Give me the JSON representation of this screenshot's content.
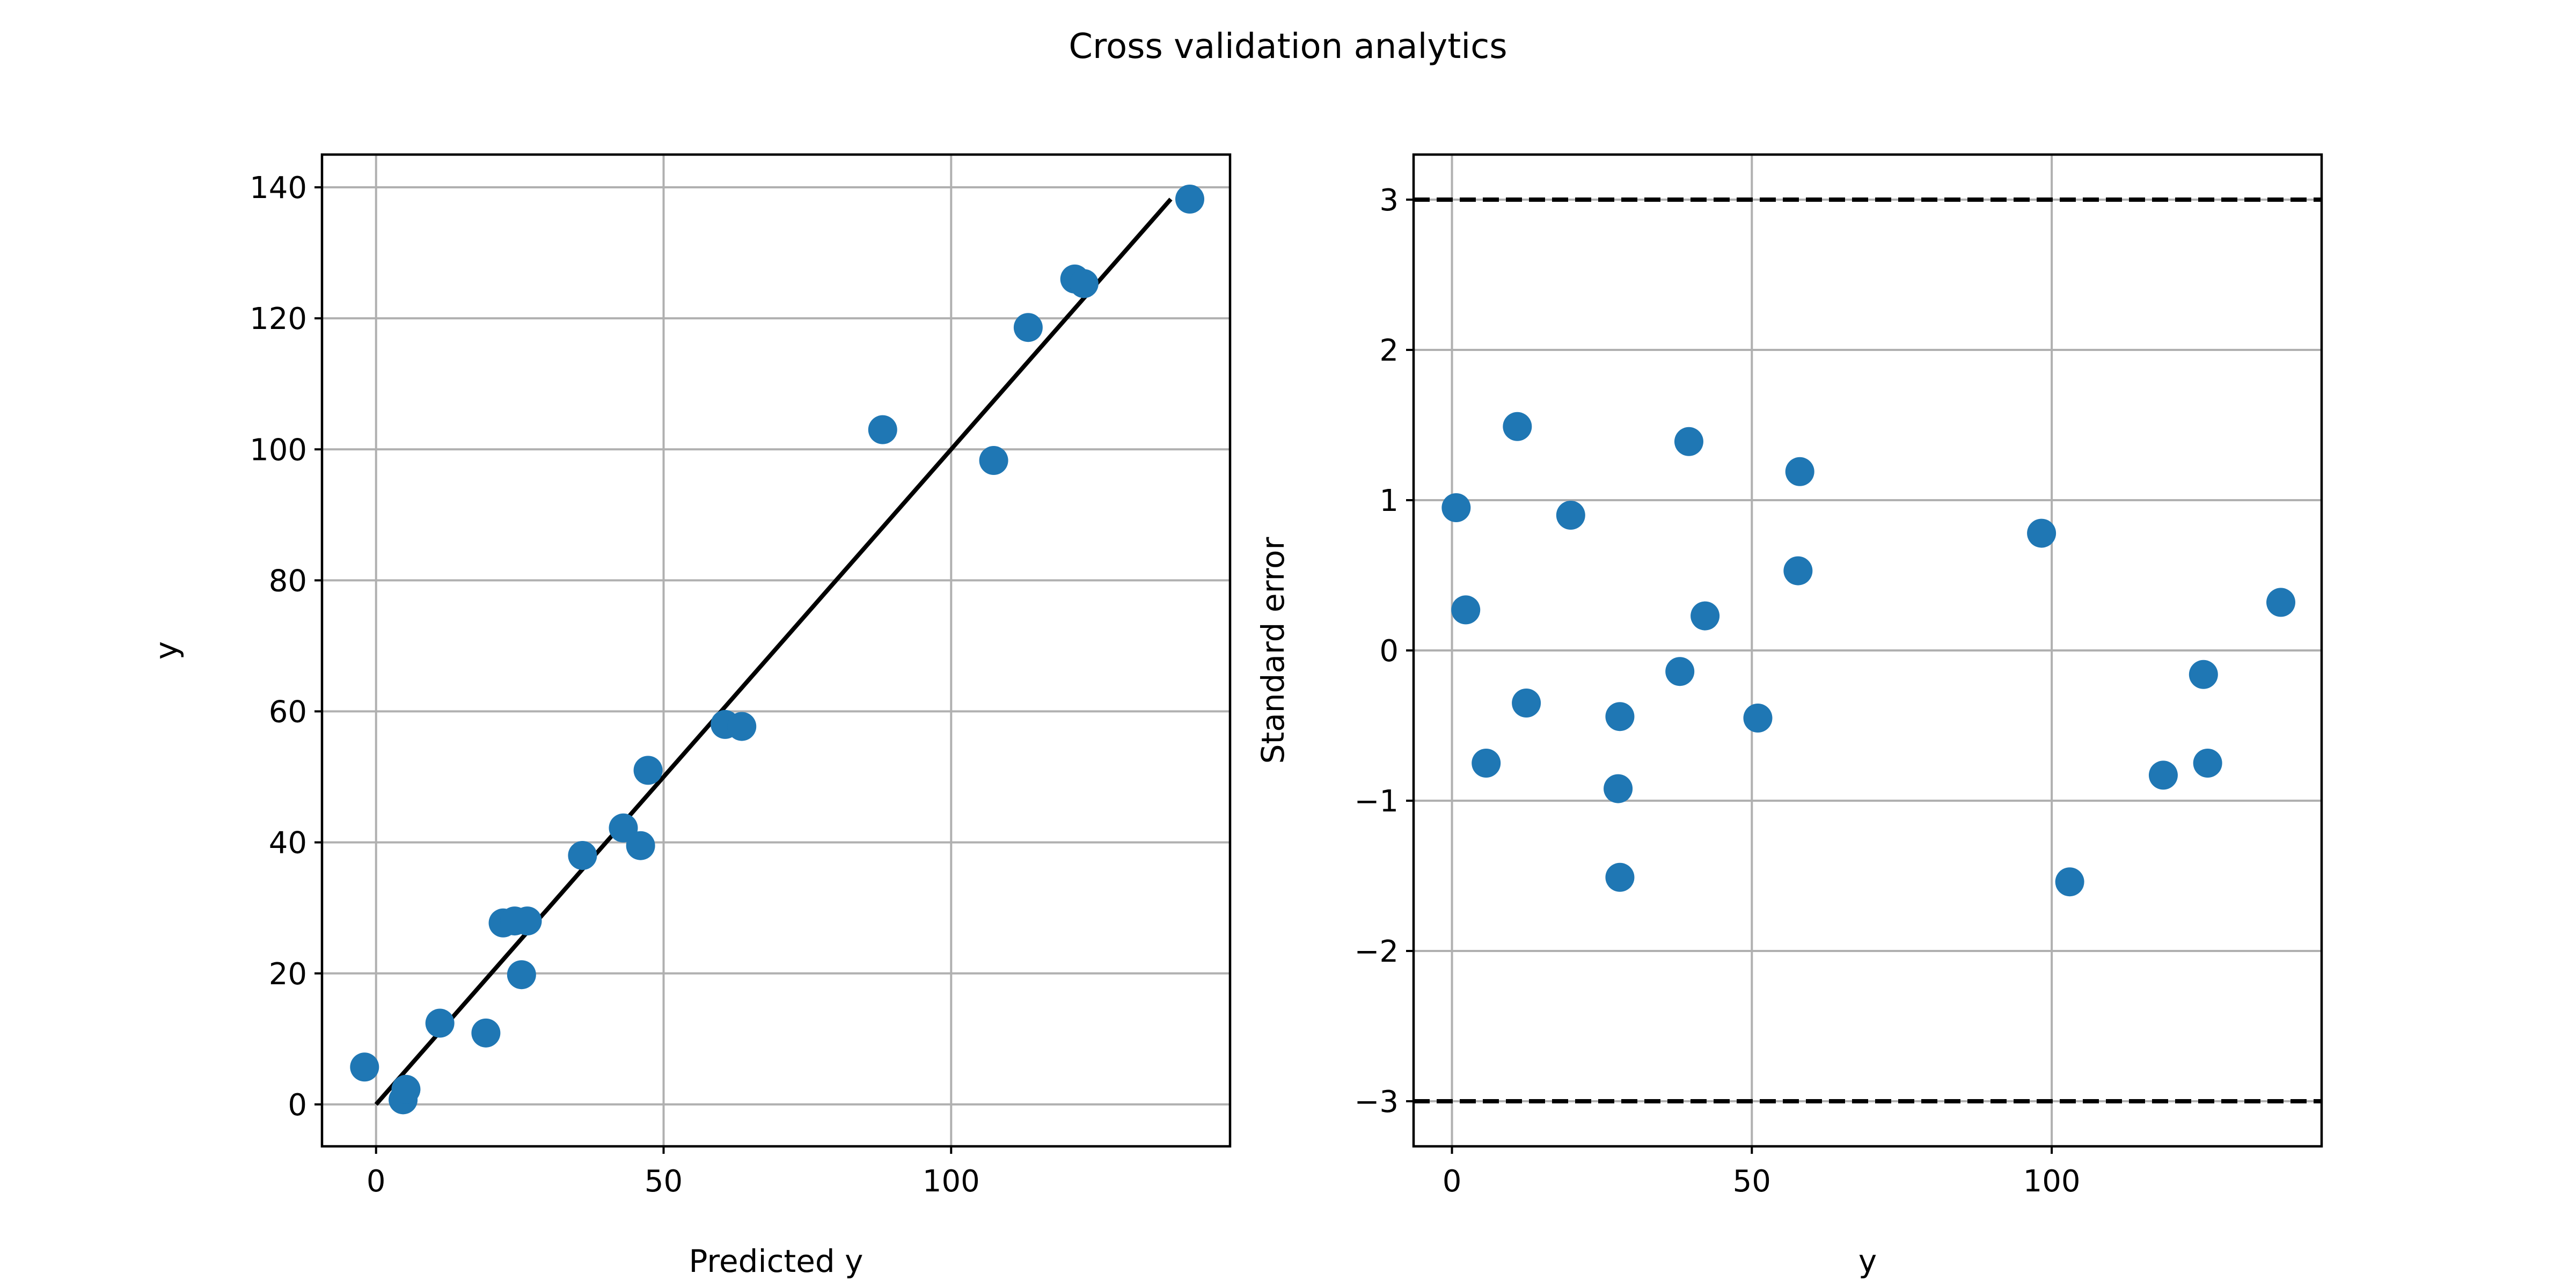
{
  "figure_title": "Cross validation analytics",
  "chart_data": [
    {
      "type": "scatter",
      "title": "",
      "xlabel": "Predicted y",
      "ylabel": "y",
      "xlim": [
        -9.4,
        148.5
      ],
      "ylim": [
        -6.4,
        145.0
      ],
      "xticks": [
        0,
        50,
        100
      ],
      "yticks": [
        0,
        20,
        40,
        60,
        80,
        100,
        120,
        140
      ],
      "grid": true,
      "point_color": "#1f77b4",
      "reference_line": {
        "x": [
          0,
          138.2
        ],
        "y": [
          0,
          138.2
        ],
        "color": "#000000",
        "style": "solid"
      },
      "points": [
        {
          "x": -2.0,
          "y": 5.7
        },
        {
          "x": 4.7,
          "y": 0.7
        },
        {
          "x": 5.2,
          "y": 2.3
        },
        {
          "x": 11.1,
          "y": 12.4
        },
        {
          "x": 19.1,
          "y": 10.9
        },
        {
          "x": 22.1,
          "y": 27.7
        },
        {
          "x": 24.1,
          "y": 28.0
        },
        {
          "x": 26.3,
          "y": 28.0
        },
        {
          "x": 25.3,
          "y": 19.8
        },
        {
          "x": 35.9,
          "y": 38.0
        },
        {
          "x": 43.0,
          "y": 42.2
        },
        {
          "x": 46.0,
          "y": 39.5
        },
        {
          "x": 47.3,
          "y": 51.0
        },
        {
          "x": 60.7,
          "y": 58.0
        },
        {
          "x": 63.6,
          "y": 57.7
        },
        {
          "x": 88.1,
          "y": 103.0
        },
        {
          "x": 107.4,
          "y": 98.3
        },
        {
          "x": 113.4,
          "y": 118.6
        },
        {
          "x": 121.5,
          "y": 126.0
        },
        {
          "x": 123.1,
          "y": 125.3
        },
        {
          "x": 141.5,
          "y": 138.2
        }
      ]
    },
    {
      "type": "scatter",
      "title": "",
      "xlabel": "y",
      "ylabel": "Standard error",
      "xlim": [
        -6.4,
        145.0
      ],
      "ylim": [
        -3.3,
        3.3
      ],
      "xticks": [
        0,
        50,
        100
      ],
      "yticks": [
        -3,
        -2,
        -1,
        0,
        1,
        2,
        3
      ],
      "ytick_labels": [
        "−3",
        "−2",
        "−1",
        "0",
        "1",
        "2",
        "3"
      ],
      "grid": true,
      "point_color": "#1f77b4",
      "limit_lines": [
        {
          "y": 3,
          "color": "#000000",
          "style": "dashed"
        },
        {
          "y": -3,
          "color": "#000000",
          "style": "dashed"
        }
      ],
      "points": [
        {
          "x": 0.7,
          "y": 0.95
        },
        {
          "x": 2.3,
          "y": 0.27
        },
        {
          "x": 5.7,
          "y": -0.75
        },
        {
          "x": 10.9,
          "y": 1.49
        },
        {
          "x": 12.4,
          "y": -0.35
        },
        {
          "x": 19.8,
          "y": 0.9
        },
        {
          "x": 27.7,
          "y": -0.92
        },
        {
          "x": 28.0,
          "y": -0.44
        },
        {
          "x": 28.0,
          "y": -1.51
        },
        {
          "x": 38.0,
          "y": -0.14
        },
        {
          "x": 39.5,
          "y": 1.39
        },
        {
          "x": 42.2,
          "y": 0.23
        },
        {
          "x": 51.0,
          "y": -0.45
        },
        {
          "x": 57.7,
          "y": 0.53
        },
        {
          "x": 58.0,
          "y": 1.19
        },
        {
          "x": 98.3,
          "y": 0.78
        },
        {
          "x": 103.0,
          "y": -1.54
        },
        {
          "x": 118.6,
          "y": -0.83
        },
        {
          "x": 125.3,
          "y": -0.16
        },
        {
          "x": 126.0,
          "y": -0.75
        },
        {
          "x": 138.2,
          "y": 0.32
        }
      ]
    }
  ]
}
